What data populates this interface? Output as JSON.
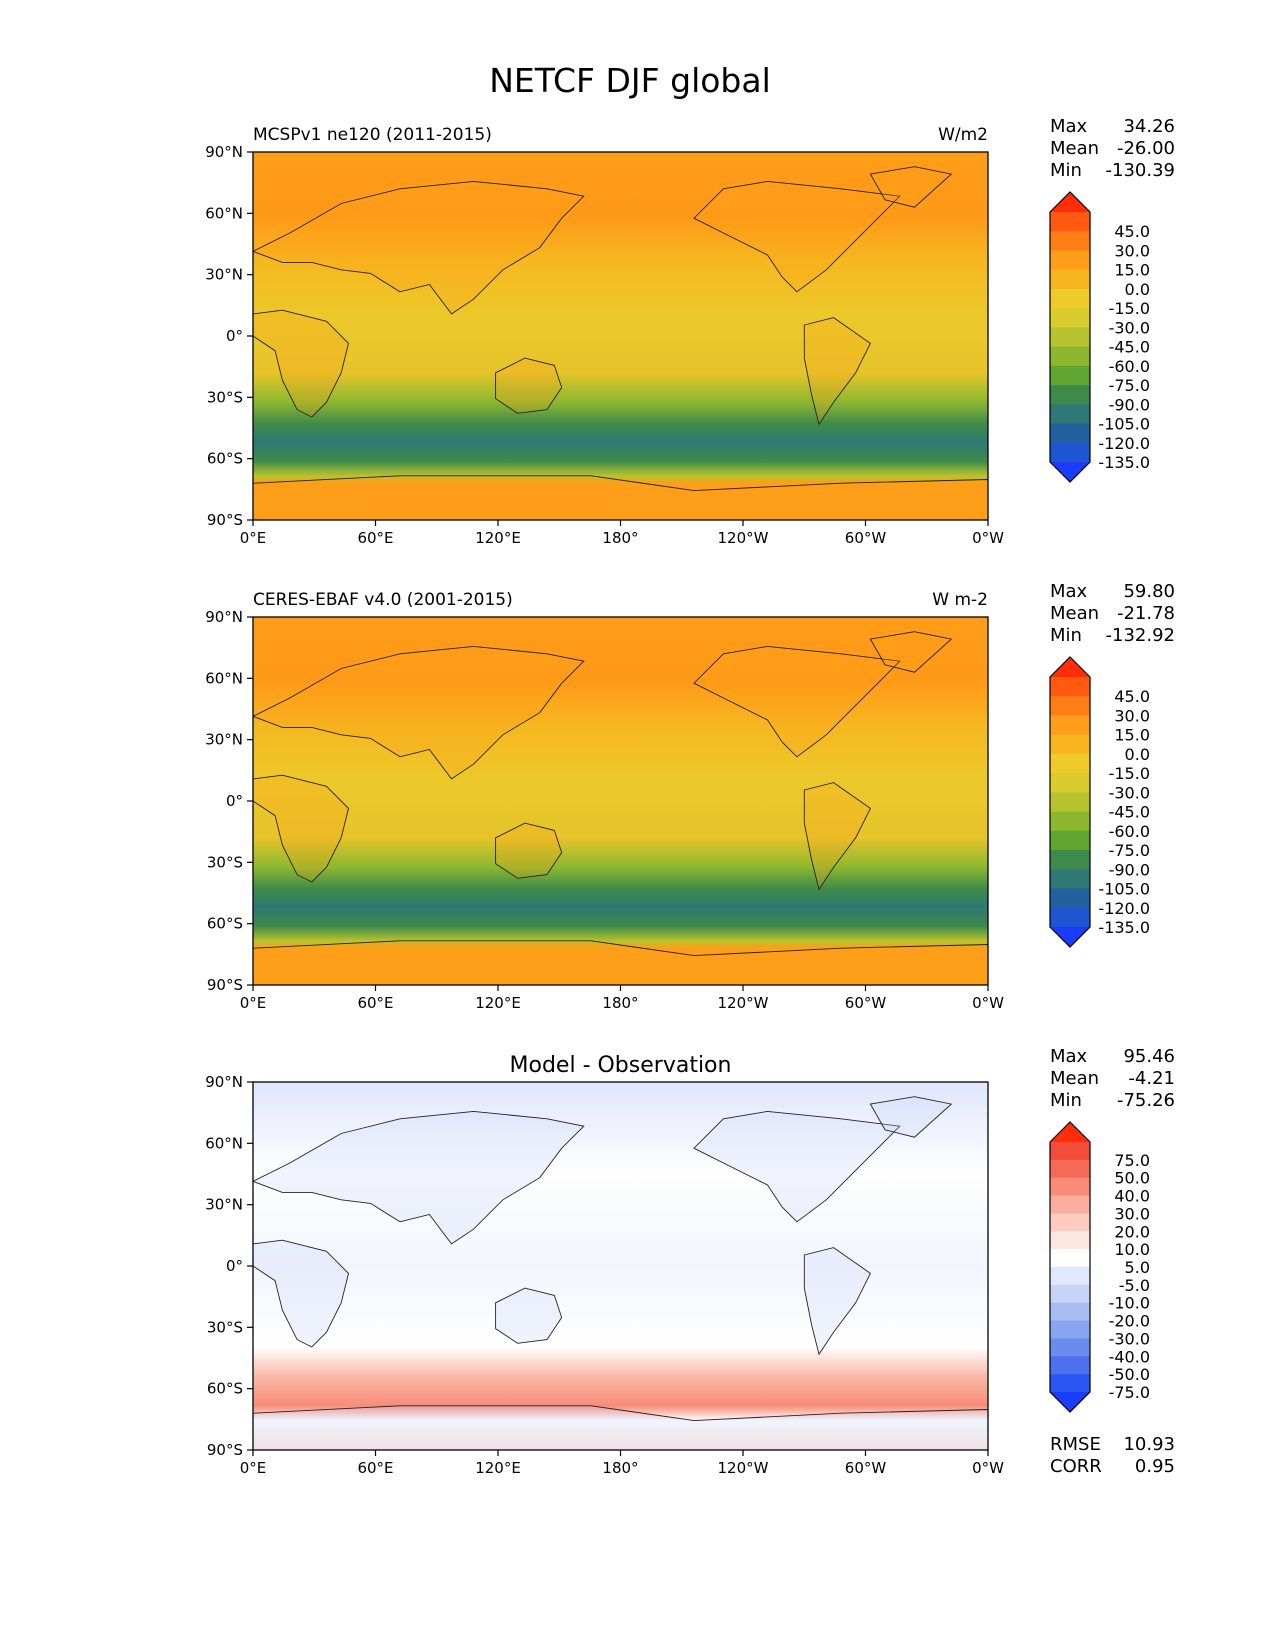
{
  "figure_title": "NETCF DJF global",
  "lat_ticks": [
    "90°N",
    "60°N",
    "30°N",
    "0°",
    "30°S",
    "60°S",
    "90°S"
  ],
  "lon_ticks": [
    "0°E",
    "60°E",
    "120°E",
    "180°",
    "120°W",
    "60°W",
    "0°W"
  ],
  "panels": [
    {
      "id": "model",
      "left_title": "MCSPv1 ne120 (2011-2015)",
      "center_title": "",
      "units": "W/m2",
      "stats": {
        "max_label": "Max",
        "max": "34.26",
        "mean_label": "Mean",
        "mean": "-26.00",
        "min_label": "Min",
        "min": "-130.39"
      },
      "colorbar": {
        "labels": [
          "45.0",
          "30.0",
          "15.0",
          "0.0",
          "-15.0",
          "-30.0",
          "-45.0",
          "-60.0",
          "-75.0",
          "-90.0",
          "-105.0",
          "-120.0",
          "-135.0"
        ],
        "colors": [
          "#ff2d0a",
          "#ff5a10",
          "#ff7d15",
          "#ff9e18",
          "#f7b520",
          "#eecb28",
          "#d9cc2e",
          "#b7c32e",
          "#8cb830",
          "#5ea532",
          "#3e8a4a",
          "#2f7876",
          "#2260a0",
          "#1f55d0",
          "#1a3cff"
        ]
      },
      "extra": null
    },
    {
      "id": "obs",
      "left_title": "CERES-EBAF v4.0 (2001-2015)",
      "center_title": "",
      "units": "W m-2",
      "stats": {
        "max_label": "Max",
        "max": "59.80",
        "mean_label": "Mean",
        "mean": "-21.78",
        "min_label": "Min",
        "min": "-132.92"
      },
      "colorbar": {
        "labels": [
          "45.0",
          "30.0",
          "15.0",
          "0.0",
          "-15.0",
          "-30.0",
          "-45.0",
          "-60.0",
          "-75.0",
          "-90.0",
          "-105.0",
          "-120.0",
          "-135.0"
        ],
        "colors": [
          "#ff2d0a",
          "#ff5a10",
          "#ff7d15",
          "#ff9e18",
          "#f7b520",
          "#eecb28",
          "#d9cc2e",
          "#b7c32e",
          "#8cb830",
          "#5ea532",
          "#3e8a4a",
          "#2f7876",
          "#2260a0",
          "#1f55d0",
          "#1a3cff"
        ]
      },
      "extra": null
    },
    {
      "id": "diff",
      "left_title": "",
      "center_title": "Model - Observation",
      "units": "",
      "stats": {
        "max_label": "Max",
        "max": "95.46",
        "mean_label": "Mean",
        "mean": "-4.21",
        "min_label": "Min",
        "min": "-75.26"
      },
      "colorbar": {
        "labels": [
          "75.0",
          "50.0",
          "40.0",
          "30.0",
          "20.0",
          "10.0",
          "5.0",
          "-5.0",
          "-10.0",
          "-20.0",
          "-30.0",
          "-40.0",
          "-50.0",
          "-75.0"
        ],
        "colors": [
          "#ff2d0a",
          "#f24c3a",
          "#f66a55",
          "#f88c78",
          "#faad9c",
          "#fcccc0",
          "#fde6e0",
          "#ffffff",
          "#e2e8fb",
          "#c8d4f7",
          "#a9bdf3",
          "#8aa5ef",
          "#6a8cec",
          "#4c70ef",
          "#2b55f5",
          "#1a3cff"
        ]
      },
      "extra": {
        "rmse_label": "RMSE",
        "rmse": "10.93",
        "corr_label": "CORR",
        "corr": "0.95"
      }
    }
  ]
}
